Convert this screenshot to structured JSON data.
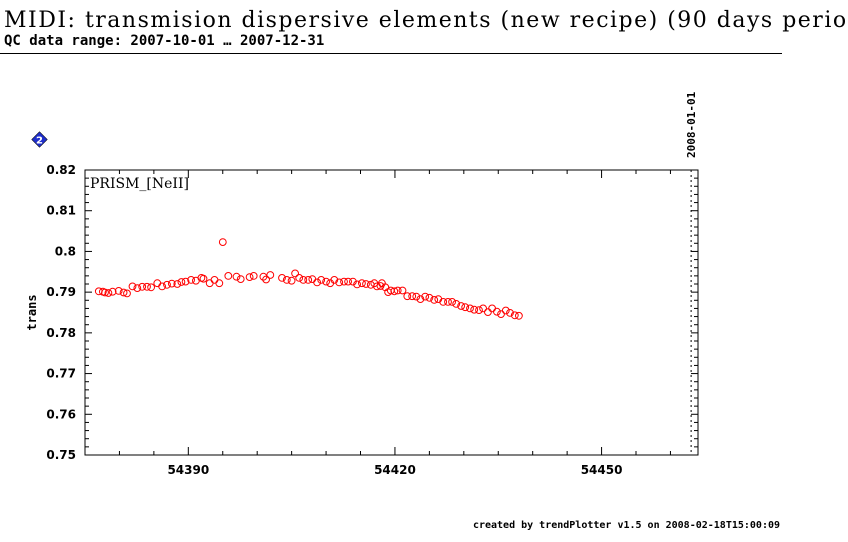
{
  "header": {
    "title": "MIDI: transmision dispersive elements (new recipe) (90 days perio",
    "subtitle": "QC data range: 2007-10-01 … 2007-12-31"
  },
  "footer": {
    "credit": "created by trendPlotter v1.5 on 2008-02-18T15:00:09"
  },
  "colors": {
    "marker": "#ff0000",
    "axis": "#000000",
    "badge": "#1f2fcc"
  },
  "chart_data": {
    "type": "scatter",
    "panel_label": "PRISM_[NeII]",
    "ylabel": "trans",
    "xlabel": "",
    "xlim": [
      54375,
      54464
    ],
    "ylim": [
      0.75,
      0.82
    ],
    "x_ticks": [
      54390,
      54420,
      54450
    ],
    "y_ticks": [
      0.75,
      0.76,
      0.77,
      0.78,
      0.79,
      0.8,
      0.81,
      0.82
    ],
    "y_tick_labels": [
      "0.75",
      "0.76",
      "0.77",
      "0.78",
      "0.79",
      "0.8",
      "0.81",
      "0.82"
    ],
    "marker": "open-circle",
    "grid": false,
    "reference_line": {
      "x": 54463,
      "label": "2008-01-01",
      "style": "dotted"
    },
    "badge_icon": "diamond-2-icon",
    "points": [
      [
        54377.0,
        0.7902
      ],
      [
        54377.6,
        0.7901
      ],
      [
        54377.9,
        0.7899
      ],
      [
        54378.4,
        0.7898
      ],
      [
        54379.0,
        0.7901
      ],
      [
        54379.9,
        0.7903
      ],
      [
        54380.6,
        0.7899
      ],
      [
        54381.1,
        0.7897
      ],
      [
        54381.9,
        0.7914
      ],
      [
        54382.6,
        0.791
      ],
      [
        54383.3,
        0.7913
      ],
      [
        54384.0,
        0.7913
      ],
      [
        54384.6,
        0.7912
      ],
      [
        54385.5,
        0.7922
      ],
      [
        54386.2,
        0.7914
      ],
      [
        54386.9,
        0.7918
      ],
      [
        54387.6,
        0.7921
      ],
      [
        54388.4,
        0.792
      ],
      [
        54389.0,
        0.7925
      ],
      [
        54389.6,
        0.7926
      ],
      [
        54390.4,
        0.793
      ],
      [
        54391.1,
        0.7928
      ],
      [
        54391.9,
        0.7935
      ],
      [
        54392.2,
        0.7933
      ],
      [
        54393.1,
        0.7922
      ],
      [
        54393.8,
        0.793
      ],
      [
        54394.5,
        0.7922
      ],
      [
        54395.0,
        0.8023
      ],
      [
        54395.8,
        0.794
      ],
      [
        54397.0,
        0.7938
      ],
      [
        54397.6,
        0.7932
      ],
      [
        54398.9,
        0.7937
      ],
      [
        54399.5,
        0.794
      ],
      [
        54400.9,
        0.7938
      ],
      [
        54401.3,
        0.7931
      ],
      [
        54401.9,
        0.7942
      ],
      [
        54403.6,
        0.7935
      ],
      [
        54404.3,
        0.793
      ],
      [
        54405.0,
        0.7928
      ],
      [
        54405.5,
        0.7946
      ],
      [
        54406.1,
        0.7935
      ],
      [
        54406.7,
        0.793
      ],
      [
        54407.4,
        0.793
      ],
      [
        54408.0,
        0.7932
      ],
      [
        54408.7,
        0.7924
      ],
      [
        54409.3,
        0.793
      ],
      [
        54410.0,
        0.7926
      ],
      [
        54410.6,
        0.7922
      ],
      [
        54411.2,
        0.793
      ],
      [
        54411.9,
        0.7924
      ],
      [
        54412.6,
        0.7926
      ],
      [
        54413.2,
        0.7926
      ],
      [
        54413.9,
        0.7926
      ],
      [
        54414.5,
        0.7919
      ],
      [
        54415.2,
        0.7922
      ],
      [
        54415.8,
        0.792
      ],
      [
        54416.5,
        0.7918
      ],
      [
        54417.0,
        0.7922
      ],
      [
        54417.4,
        0.7914
      ],
      [
        54417.9,
        0.7915
      ],
      [
        54418.1,
        0.7922
      ],
      [
        54418.6,
        0.7912
      ],
      [
        54419.0,
        0.79
      ],
      [
        54419.4,
        0.7904
      ],
      [
        54419.9,
        0.7902
      ],
      [
        54420.4,
        0.7904
      ],
      [
        54421.1,
        0.7904
      ],
      [
        54421.8,
        0.789
      ],
      [
        54422.5,
        0.789
      ],
      [
        54423.1,
        0.7889
      ],
      [
        54423.7,
        0.7883
      ],
      [
        54424.4,
        0.7889
      ],
      [
        54425.0,
        0.7886
      ],
      [
        54425.7,
        0.7881
      ],
      [
        54426.3,
        0.7883
      ],
      [
        54427.0,
        0.7876
      ],
      [
        54427.7,
        0.7876
      ],
      [
        54428.3,
        0.7876
      ],
      [
        54428.9,
        0.7871
      ],
      [
        54429.6,
        0.7866
      ],
      [
        54430.2,
        0.7863
      ],
      [
        54430.9,
        0.786
      ],
      [
        54431.5,
        0.7857
      ],
      [
        54432.2,
        0.7856
      ],
      [
        54432.8,
        0.786
      ],
      [
        54433.5,
        0.7851
      ],
      [
        54434.1,
        0.786
      ],
      [
        54434.8,
        0.7852
      ],
      [
        54435.4,
        0.7846
      ],
      [
        54436.1,
        0.7855
      ],
      [
        54436.7,
        0.7849
      ],
      [
        54437.4,
        0.7843
      ],
      [
        54438.0,
        0.7842
      ]
    ]
  }
}
